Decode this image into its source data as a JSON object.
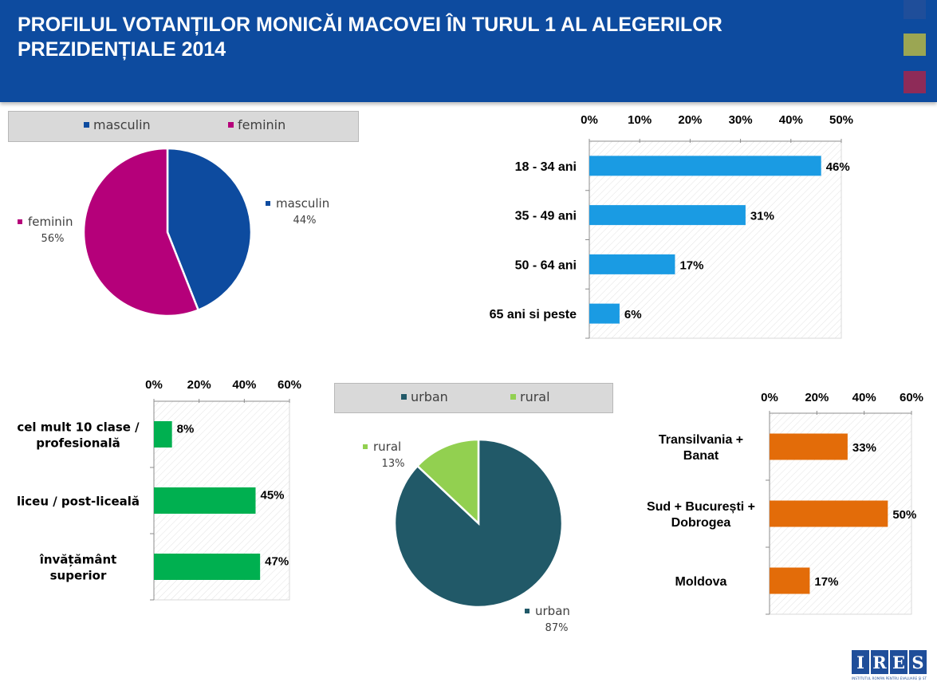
{
  "header": {
    "title_line1": "PROFILUL VOTANȚILOR MONICĂI MACOVEI ÎN TURUL 1 AL ALEGERILOR",
    "title_line2": "PREZIDENȚIALE 2014",
    "accent_colors": [
      "#1f4e9a",
      "#9ba653",
      "#8e2b58"
    ]
  },
  "logo": {
    "letters": [
      "I",
      "R",
      "E",
      "S"
    ],
    "subtitle": "INSTITUTUL ROMÂN PENTRU EVALUARE ŞI STRATEGIE"
  },
  "chart_data": [
    {
      "id": "gender",
      "type": "pie",
      "legend": [
        "masculin",
        "feminin"
      ],
      "legend_placement": "top",
      "slices": [
        {
          "label": "masculin",
          "value": 44,
          "display": "44%",
          "color": "#0d4b9f"
        },
        {
          "label": "feminin",
          "value": 56,
          "display": "56%",
          "color": "#b5007a"
        }
      ]
    },
    {
      "id": "age",
      "type": "bar",
      "orientation": "horizontal",
      "categories": [
        "18 - 34 ani",
        "35 - 49 ani",
        "50 - 64 ani",
        "65 ani si peste"
      ],
      "values": [
        46,
        31,
        17,
        6
      ],
      "value_labels": [
        "46%",
        "31%",
        "17%",
        "6%"
      ],
      "xlim": [
        0,
        50
      ],
      "ticks": [
        "0%",
        "10%",
        "20%",
        "30%",
        "40%",
        "50%"
      ],
      "tick_values": [
        0,
        10,
        20,
        30,
        40,
        50
      ],
      "color": "#1a9be3"
    },
    {
      "id": "education",
      "type": "bar",
      "orientation": "horizontal",
      "categories": [
        [
          "cel mult 10 clase /",
          "profesională"
        ],
        [
          "liceu / post-liceală"
        ],
        [
          "învățământ",
          "superior"
        ]
      ],
      "values": [
        8,
        45,
        47
      ],
      "value_labels": [
        "8%",
        "45%",
        "47%"
      ],
      "xlim": [
        0,
        60
      ],
      "ticks": [
        "0%",
        "20%",
        "40%",
        "60%"
      ],
      "tick_values": [
        0,
        20,
        40,
        60
      ],
      "color": "#00b050"
    },
    {
      "id": "residence",
      "type": "pie",
      "legend": [
        "urban",
        "rural"
      ],
      "legend_placement": "top",
      "slices": [
        {
          "label": "urban",
          "value": 87,
          "display": "87%",
          "color": "#215968"
        },
        {
          "label": "rural",
          "value": 13,
          "display": "13%",
          "color": "#92d050"
        }
      ]
    },
    {
      "id": "region",
      "type": "bar",
      "orientation": "horizontal",
      "categories": [
        [
          "Transilvania +",
          "Banat"
        ],
        [
          "Sud + București +",
          "Dobrogea"
        ],
        [
          "Moldova"
        ]
      ],
      "values": [
        33,
        50,
        17
      ],
      "value_labels": [
        "33%",
        "50%",
        "17%"
      ],
      "xlim": [
        0,
        60
      ],
      "ticks": [
        "0%",
        "20%",
        "40%",
        "60%"
      ],
      "tick_values": [
        0,
        20,
        40,
        60
      ],
      "color": "#e36c09"
    }
  ]
}
